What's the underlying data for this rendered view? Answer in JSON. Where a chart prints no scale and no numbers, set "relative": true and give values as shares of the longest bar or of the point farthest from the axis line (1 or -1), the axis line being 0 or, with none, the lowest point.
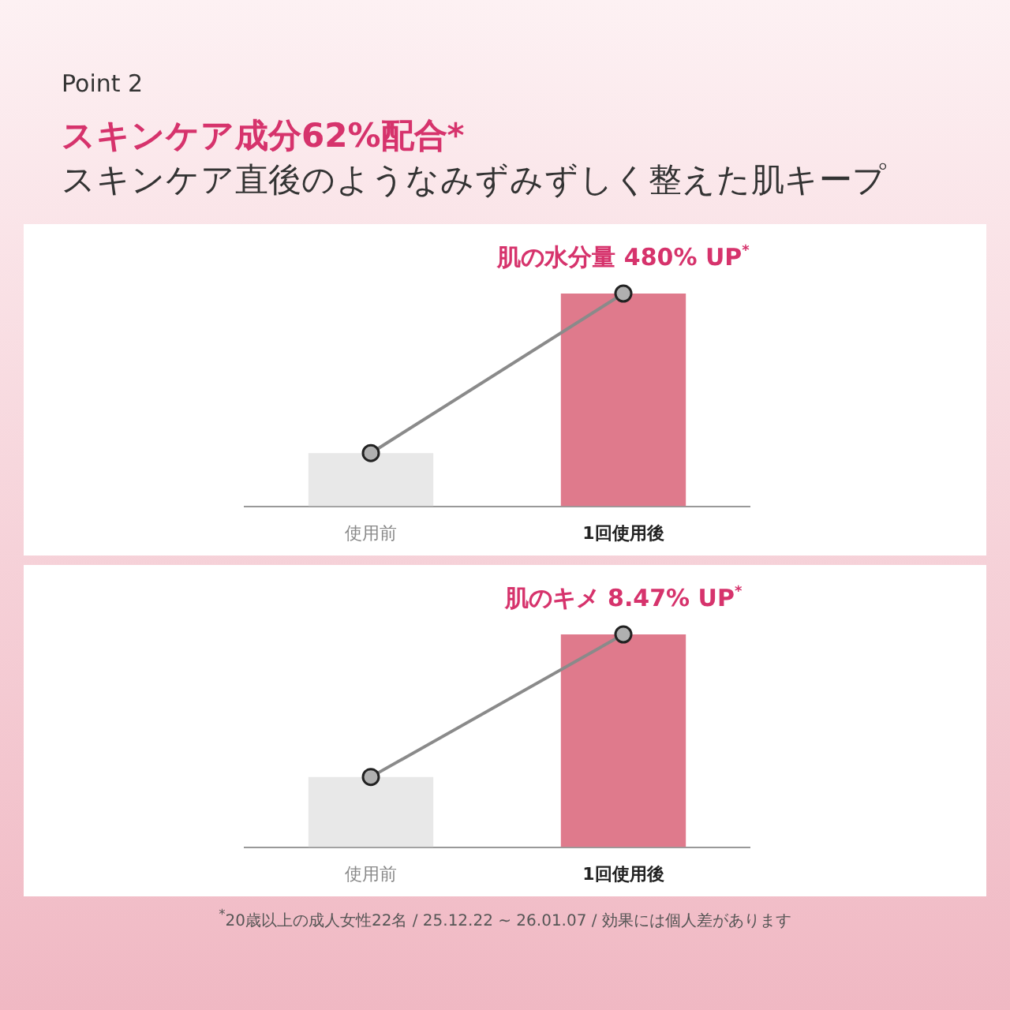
{
  "chart_data": [
    {
      "type": "bar",
      "title": "スキンケア成分62%配合*",
      "subtitle": "スキンケア直後のようなみずみずしく整えた肌キープ",
      "categories": [
        "使用前",
        "1回使用後"
      ],
      "relative": true,
      "legend": false,
      "marker": "circle",
      "series": [
        {
          "colors": [
            "#e8e8e8",
            "#df7a8c"
          ],
          "values": [
            0.25,
            1
          ]
        },
        {
          "type": "line",
          "color": "#8a8a8a",
          "values": [
            0.25,
            1
          ]
        }
      ],
      "annotations": [
        "Point 2",
        {
          "text": "肌の水分量 480% UP$^{*}$",
          "x": "1回使用後",
          "y": 1
        }
      ]
    },
    {
      "type": "bar",
      "categories": [
        "使用前",
        "1回使用後"
      ],
      "relative": true,
      "legend": false,
      "marker": "circle",
      "series": [
        {
          "colors": [
            "#e8e8e8",
            "#df7a8c"
          ],
          "values": [
            0.33,
            1
          ]
        },
        {
          "type": "line",
          "color": "#8a8a8a",
          "values": [
            0.33,
            1
          ]
        }
      ],
      "annotations": [
        {
          "text": "肌のキメ 8.47% UP$^{*}$",
          "x": "1回使用後",
          "y": 1
        },
        "$^{*}$20歳以上の成人女性22名 / 25.12.22 ~ 26.01.07 / 効果には個人差があります"
      ]
    }
  ]
}
